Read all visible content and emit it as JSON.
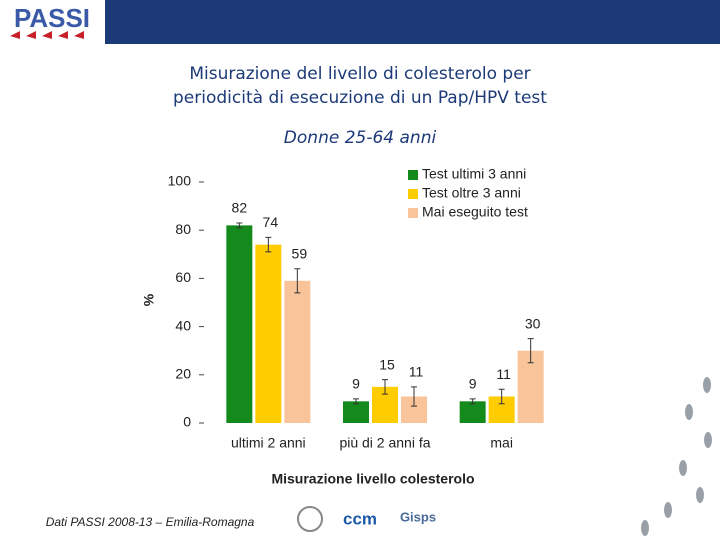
{
  "header": {
    "logo": "PASSI"
  },
  "footer": {
    "source": "Dati PASSI 2008-13 – Emilia-Romagna",
    "logos": [
      "ccm",
      "Gisps"
    ]
  },
  "chart_data": {
    "type": "bar",
    "title": [
      "Misurazione del livello di colesterolo per",
      "periodicità di esecuzione di un Pap/HPV test"
    ],
    "subtitle": "Donne 25-64 anni",
    "xlabel": "Misurazione livello colesterolo",
    "ylabel": "%",
    "categories": [
      "ultimi 2 anni",
      "più di 2 anni fa",
      "mai"
    ],
    "series": [
      {
        "name": "Test ultimi 3 anni",
        "color": "#138a1b",
        "values": [
          82,
          9,
          9
        ],
        "errors": [
          1,
          1,
          1
        ]
      },
      {
        "name": "Test oltre 3 anni",
        "color": "#ffcc00",
        "values": [
          74,
          15,
          11
        ],
        "errors": [
          3,
          3,
          3
        ]
      },
      {
        "name": "Mai eseguito test",
        "color": "#f9c49a",
        "values": [
          59,
          11,
          30
        ],
        "errors": [
          5,
          4,
          5
        ]
      }
    ],
    "ylim": [
      0,
      100
    ],
    "yticks": [
      0,
      20,
      40,
      60,
      80,
      100
    ],
    "grid": false,
    "legend": "top-right"
  }
}
